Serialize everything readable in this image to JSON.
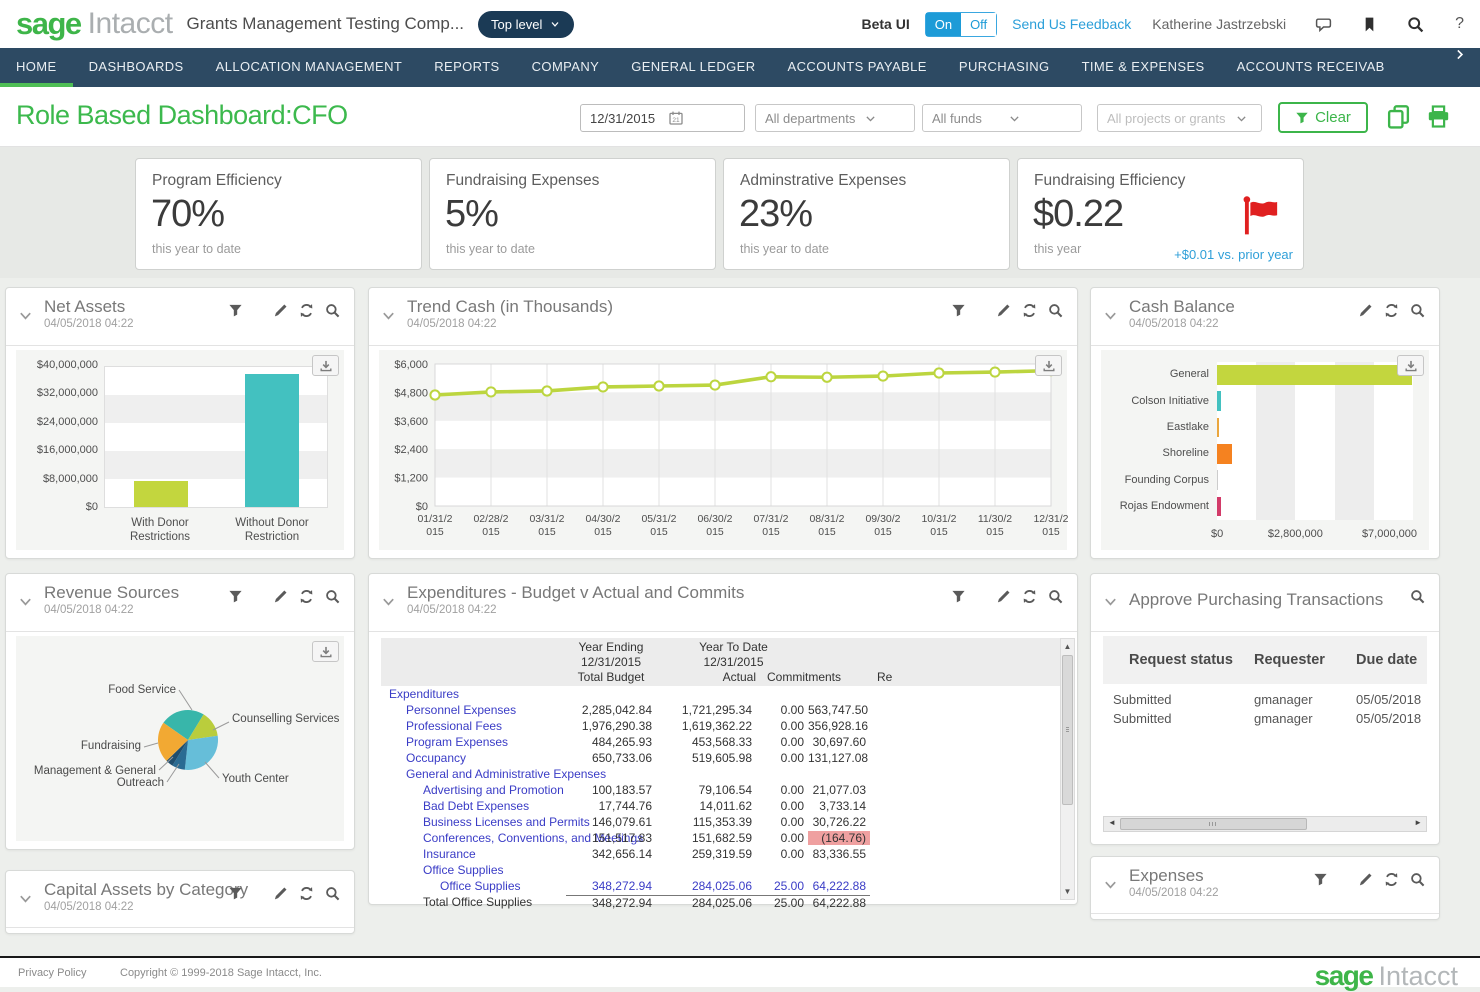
{
  "header": {
    "logo_sage": "sage",
    "logo_intacct": "Intacct",
    "company": "Grants Management Testing Comp...",
    "entity": "Top level",
    "beta_label": "Beta UI",
    "beta_on": "On",
    "beta_off": "Off",
    "feedback": "Send Us Feedback",
    "user": "Katherine Jastrzebski",
    "help": "?"
  },
  "nav": {
    "items": [
      "HOME",
      "DASHBOARDS",
      "ALLOCATION MANAGEMENT",
      "REPORTS",
      "COMPANY",
      "GENERAL LEDGER",
      "ACCOUNTS PAYABLE",
      "PURCHASING",
      "TIME & EXPENSES",
      "ACCOUNTS RECEIVAB"
    ],
    "active": "HOME",
    "more_arrow": ">"
  },
  "toolbar": {
    "title": "Role Based Dashboard:CFO",
    "date_value": "12/31/2015",
    "filters": [
      "All departments",
      "All funds",
      "All projects or grants"
    ],
    "clear_label": "Clear"
  },
  "kpi_row": {
    "cards": [
      {
        "title": "Program Efficiency",
        "value": "70%",
        "caption": "this year to date"
      },
      {
        "title": "Fundraising Expenses",
        "value": "5%",
        "caption": "this year to date"
      },
      {
        "title": "Adminstrative Expenses",
        "value": "23%",
        "caption": "this year to date"
      },
      {
        "title": "Fundraising Efficiency",
        "value": "$0.22",
        "caption": "this year",
        "flag": true,
        "delta": "+$0.01 vs. prior year"
      }
    ]
  },
  "widgets": {
    "net_assets": {
      "title": "Net Assets",
      "timestamp": "04/05/2018 04:22",
      "icons": [
        "filter",
        "edit",
        "refresh",
        "zoom"
      ],
      "chart": 0
    },
    "trend_cash": {
      "title": "Trend Cash (in Thousands)",
      "timestamp": "04/05/2018 04:22",
      "icons": [
        "filter",
        "edit",
        "refresh",
        "zoom"
      ],
      "chart": 1
    },
    "cash_balance": {
      "title": "Cash Balance",
      "timestamp": "04/05/2018 04:22",
      "icons": [
        "edit",
        "refresh",
        "zoom"
      ],
      "chart": 2
    },
    "revenue_sources": {
      "title": "Revenue Sources",
      "timestamp": "04/05/2018 04:22",
      "icons": [
        "filter",
        "edit",
        "refresh",
        "zoom"
      ],
      "chart": 3
    },
    "expenditures": {
      "title": "Expenditures - Budget v Actual and Commits",
      "timestamp": "04/05/2018 04:22",
      "icons": [
        "filter",
        "edit",
        "refresh",
        "zoom"
      ],
      "table": {
        "header": {
          "year_ending": "Year Ending",
          "ye_date": "12/31/2015",
          "total_budget": "Total Budget",
          "ytd": "Year To Date",
          "ytd_date": "12/31/2015",
          "actual": "Actual",
          "commitments": "Commitments",
          "remaining_clipped": "Re"
        },
        "rows": [
          {
            "label": "Expenditures",
            "indent": 0,
            "type": "section"
          },
          {
            "label": "Personnel Expenses",
            "indent": 1,
            "type": "data",
            "budget": "2,285,042.84",
            "actual": "1,721,295.34",
            "commitments": "0.00",
            "remaining": "563,747.50"
          },
          {
            "label": "Professional Fees",
            "indent": 1,
            "type": "data",
            "budget": "1,976,290.38",
            "actual": "1,619,362.22",
            "commitments": "0.00",
            "remaining": "356,928.16"
          },
          {
            "label": "Program Expenses",
            "indent": 1,
            "type": "data",
            "budget": "484,265.93",
            "actual": "453,568.33",
            "commitments": "0.00",
            "remaining": "30,697.60"
          },
          {
            "label": "Occupancy",
            "indent": 1,
            "type": "data",
            "budget": "650,733.06",
            "actual": "519,605.98",
            "commitments": "0.00",
            "remaining": "131,127.08"
          },
          {
            "label": "General and Administrative Expenses",
            "indent": 1,
            "type": "section"
          },
          {
            "label": "Advertising and Promotion",
            "indent": 2,
            "type": "data",
            "budget": "100,183.57",
            "actual": "79,106.54",
            "commitments": "0.00",
            "remaining": "21,077.03"
          },
          {
            "label": "Bad Debt Expenses",
            "indent": 2,
            "type": "data",
            "budget": "17,744.76",
            "actual": "14,011.62",
            "commitments": "0.00",
            "remaining": "3,733.14"
          },
          {
            "label": "Business Licenses and Permits",
            "indent": 2,
            "type": "data",
            "budget": "146,079.61",
            "actual": "115,353.39",
            "commitments": "0.00",
            "remaining": "30,726.22"
          },
          {
            "label": "Conferences, Conventions, and Meetings",
            "indent": 2,
            "type": "data",
            "budget": "151,517.83",
            "actual": "151,682.59",
            "commitments": "0.00",
            "remaining": "(164.76)",
            "negative": true
          },
          {
            "label": "Insurance",
            "indent": 2,
            "type": "data",
            "budget": "342,656.14",
            "actual": "259,319.59",
            "commitments": "0.00",
            "remaining": "83,336.55"
          },
          {
            "label": "Office Supplies",
            "indent": 2,
            "type": "section"
          },
          {
            "label": "Office Supplies",
            "indent": 3,
            "type": "link",
            "budget": "348,272.94",
            "actual": "284,025.06",
            "commitments": "25.00",
            "remaining": "64,222.88"
          },
          {
            "label": "Total Office Supplies",
            "indent": 2,
            "type": "total",
            "budget": "348,272.94",
            "actual": "284,025.06",
            "commitments": "25.00",
            "remaining": "64,222.88"
          }
        ]
      }
    },
    "approve_purchasing": {
      "title": "Approve Purchasing Transactions",
      "icons": [
        "zoom"
      ],
      "table": {
        "headers": [
          "Request status",
          "Requester",
          "Due date"
        ],
        "rows": [
          [
            "Submitted",
            "gmanager",
            "05/05/2018"
          ],
          [
            "Submitted",
            "gmanager",
            "05/05/2018"
          ]
        ]
      }
    },
    "expenses": {
      "title": "Expenses",
      "timestamp": "04/05/2018 04:22",
      "icons": [
        "filter",
        "edit",
        "refresh",
        "zoom"
      ]
    },
    "capital_assets": {
      "title": "Capital Assets by Category",
      "timestamp": "04/05/2018 04:22",
      "icons": [
        "filter",
        "edit",
        "refresh",
        "zoom"
      ]
    }
  },
  "chart_data": [
    {
      "id": "net_assets",
      "type": "bar",
      "title": "Net Assets",
      "categories": [
        "With Donor Restrictions",
        "Without Donor Restriction"
      ],
      "values": [
        7200000,
        37500000
      ],
      "bar_colors": [
        "#c3d63e",
        "#43c1c0"
      ],
      "ylim": [
        0,
        40000000
      ],
      "yticks": [
        "$0",
        "$8,000,000",
        "$16,000,000",
        "$24,000,000",
        "$32,000,000",
        "$40,000,000"
      ],
      "grid": "horizontal-bands",
      "legend": "none"
    },
    {
      "id": "trend_cash",
      "type": "line",
      "title": "Trend Cash (in Thousands)",
      "x": [
        "01/31/2015",
        "02/28/2015",
        "03/31/2015",
        "04/30/2015",
        "05/31/2015",
        "06/30/2015",
        "07/31/2015",
        "08/31/2015",
        "09/30/2015",
        "10/31/2015",
        "11/30/2015",
        "12/31/2015"
      ],
      "values": [
        4690,
        4820,
        4860,
        5030,
        5070,
        5110,
        5460,
        5440,
        5490,
        5620,
        5660,
        5720
      ],
      "line_color": "#bcd53f",
      "marker": "circle-white",
      "ylim": [
        0,
        6000
      ],
      "yticks": [
        "$0",
        "$1,200",
        "$2,400",
        "$3,600",
        "$4,800",
        "$6,000"
      ],
      "grid": "both",
      "legend": "none"
    },
    {
      "id": "cash_balance",
      "type": "bar-horizontal",
      "title": "Cash Balance",
      "categories": [
        "General",
        "Colson Initiative",
        "Eastlake",
        "Shoreline",
        "Founding Corpus",
        "Rojas Endowment"
      ],
      "values": [
        6950000,
        150000,
        60000,
        550000,
        25000,
        130000
      ],
      "bar_colors": [
        "#c3d63e",
        "#43c1c0",
        "#eaa63d",
        "#f58220",
        "#cccccc",
        "#d23b69"
      ],
      "xlim": [
        0,
        7000000
      ],
      "xticks": [
        "$0",
        "$2,800,000",
        "$7,000,000"
      ],
      "grid": "vertical-bands",
      "legend": "none"
    },
    {
      "id": "revenue_sources",
      "type": "pie",
      "title": "Revenue Sources",
      "slices": [
        {
          "label": "Food Service",
          "percent": 24,
          "color": "#38b6aa"
        },
        {
          "label": "Counselling Services",
          "percent": 14,
          "color": "#bacd3c"
        },
        {
          "label": "Youth Center",
          "percent": 29,
          "color": "#66bed9"
        },
        {
          "label": "Outreach",
          "percent": 7,
          "color": "#2a6b92"
        },
        {
          "label": "Management & General",
          "percent": 4,
          "color": "#1f4e6e"
        },
        {
          "label": "Fundraising",
          "percent": 22,
          "color": "#f2a933"
        }
      ],
      "start_angle_deg": -55,
      "legend": "callout-labels"
    }
  ],
  "footer": {
    "privacy": "Privacy Policy",
    "copyright": "Copyright © 1999-2018 Sage Intacct, Inc.",
    "logo_sage": "sage",
    "logo_intacct": "Intacct"
  }
}
